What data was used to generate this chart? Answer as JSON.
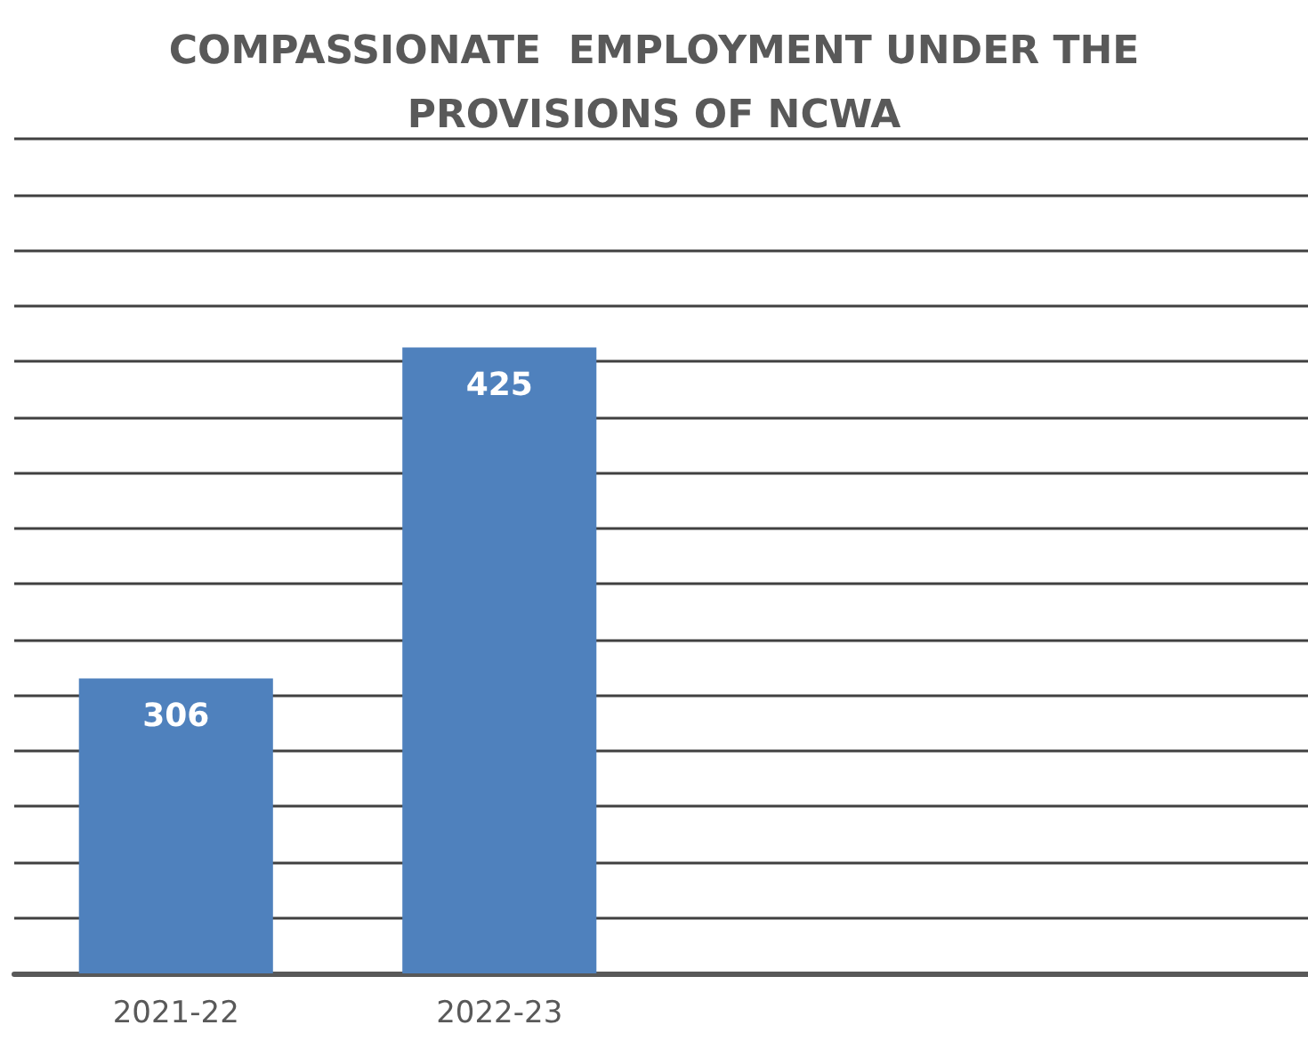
{
  "chart_data": {
    "type": "bar",
    "title": "COMPASSIONATE  EMPLOYMENT UNDER THE PROVISIONS OF NCWA",
    "categories": [
      "2021-22",
      "2022-23",
      null,
      null
    ],
    "values": [
      306,
      425,
      null,
      null
    ],
    "color": "#4f81bd",
    "data_labels": true,
    "ylim": [
      200,
      500
    ],
    "yticks": [
      {
        "value": 200,
        "label": null
      },
      {
        "value": 220,
        "label": null
      },
      {
        "value": 240,
        "label": null
      },
      {
        "value": 260,
        "label": null
      },
      {
        "value": 280,
        "label": null
      },
      {
        "value": 300,
        "label": null
      },
      {
        "value": 320,
        "label": null
      },
      {
        "value": 340,
        "label": null
      },
      {
        "value": 360,
        "label": null
      },
      {
        "value": 380,
        "label": null
      },
      {
        "value": 400,
        "label": null
      },
      {
        "value": 420,
        "label": null
      },
      {
        "value": 440,
        "label": null
      },
      {
        "value": 460,
        "label": null
      },
      {
        "value": 480,
        "label": null
      },
      {
        "value": 500,
        "label": null
      }
    ],
    "tick_labels": "x",
    "grid": "y"
  }
}
